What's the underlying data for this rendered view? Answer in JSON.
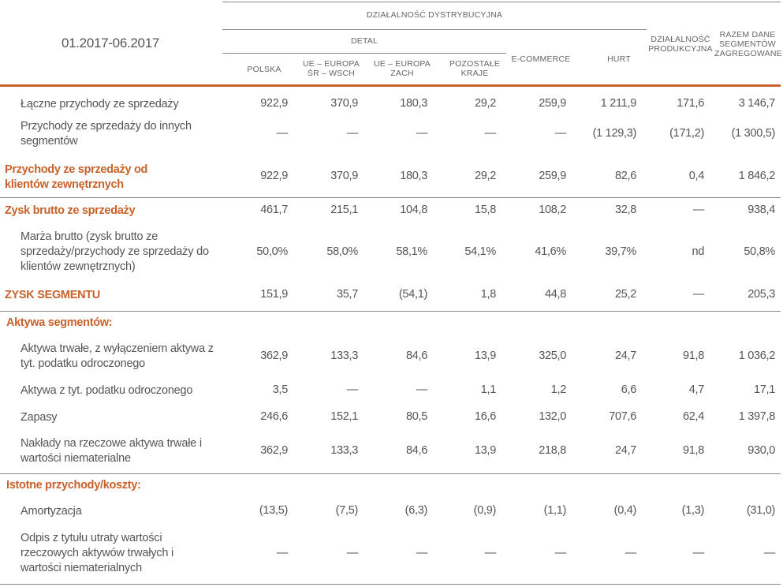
{
  "header": {
    "period": "01.2017-06.2017",
    "distribution": "DZIAŁALNOŚĆ DYSTRYBUCYJNA",
    "retail": "DETAL",
    "columns": [
      "POLSKA",
      "UE – EUROPA ŚR – WSCH",
      "UE – EUROPA ZACH",
      "POZOSTAŁE KRAJE",
      "E-COMMERCE",
      "HURT",
      "DZIAŁALNOŚĆ PRODUKCYJNA",
      "RAZEM DANE SEGMENTÓW ZAGREGOWANE"
    ]
  },
  "rows": [
    {
      "label": "Łączne przychody ze sprzedaży",
      "values": [
        "922,9",
        "370,9",
        "180,3",
        "29,2",
        "259,9",
        "1 211,9",
        "171,6",
        "3 146,7"
      ]
    },
    {
      "label": "Przychody ze sprzedaży do innych segmentów",
      "values": [
        "—",
        "—",
        "—",
        "—",
        "—",
        "(1 129,3)",
        "(171,2)",
        "(1 300,5)"
      ]
    },
    {
      "label": "Przychody ze sprzedaży od klientów zewnętrznych",
      "values": [
        "922,9",
        "370,9",
        "180,3",
        "29,2",
        "259,9",
        "82,6",
        "0,4",
        "1 846,2"
      ]
    },
    {
      "label": "Zysk brutto ze sprzedaży",
      "values": [
        "461,7",
        "215,1",
        "104,8",
        "15,8",
        "108,2",
        "32,8",
        "—",
        "938,4"
      ]
    },
    {
      "label": "Marża brutto (zysk brutto ze sprzedaży/przychody ze sprzedaży do klientów zewnętrznych)",
      "values": [
        "50,0%",
        "58,0%",
        "58,1%",
        "54,1%",
        "41,6%",
        "39,7%",
        "nd",
        "50,8%"
      ]
    },
    {
      "label": "ZYSK SEGMENTU",
      "values": [
        "151,9",
        "35,7",
        "(54,1)",
        "1,8",
        "44,8",
        "25,2",
        "—",
        "205,3"
      ]
    },
    {
      "label": "Aktywa segmentów:",
      "values": []
    },
    {
      "label": "Aktywa trwałe, z wyłączeniem aktywa z tyt. podatku odroczonego",
      "values": [
        "362,9",
        "133,3",
        "84,6",
        "13,9",
        "325,0",
        "24,7",
        "91,8",
        "1 036,2"
      ]
    },
    {
      "label": "Aktywa z tyt. podatku odroczonego",
      "values": [
        "3,5",
        "—",
        "—",
        "1,1",
        "1,2",
        "6,6",
        "4,7",
        "17,1"
      ]
    },
    {
      "label": "Zapasy",
      "values": [
        "246,6",
        "152,1",
        "80,5",
        "16,6",
        "132,0",
        "707,6",
        "62,4",
        "1 397,8"
      ]
    },
    {
      "label": "Nakłady na rzeczowe aktywa trwałe i wartości niematerialne",
      "values": [
        "362,9",
        "133,3",
        "84,6",
        "13,9",
        "218,8",
        "24,7",
        "91,8",
        "930,0"
      ]
    },
    {
      "label": "Istotne przychody/koszty:",
      "values": []
    },
    {
      "label": "Amortyzacja",
      "values": [
        "(13,5)",
        "(7,5)",
        "(6,3)",
        "(0,9)",
        "(1,1)",
        "(0,4)",
        "(1,3)",
        "(31,0)"
      ]
    },
    {
      "label": "Odpis z tytułu utraty wartości rzeczowych aktywów trwałych i wartości niematerialnych",
      "values": [
        "—",
        "—",
        "—",
        "—",
        "—",
        "—",
        "—",
        "—"
      ]
    }
  ],
  "colors": {
    "accent": "#c8612a",
    "text": "#555555",
    "rule": "#8a8a8a"
  }
}
